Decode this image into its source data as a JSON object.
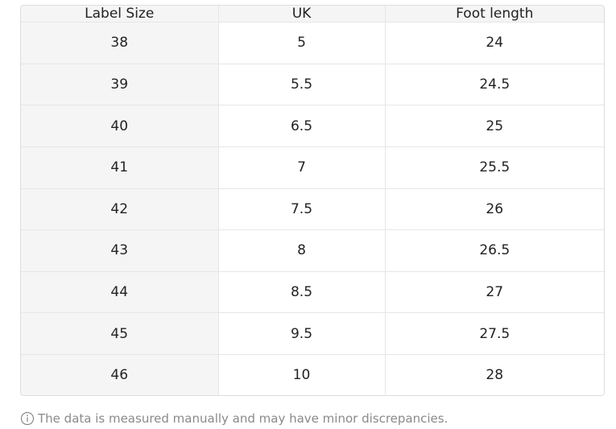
{
  "table": {
    "headers": [
      "Label Size",
      "UK",
      "Foot length"
    ],
    "rows": [
      [
        "38",
        "5",
        "24"
      ],
      [
        "39",
        "5.5",
        "24.5"
      ],
      [
        "40",
        "6.5",
        "25"
      ],
      [
        "41",
        "7",
        "25.5"
      ],
      [
        "42",
        "7.5",
        "26"
      ],
      [
        "43",
        "8",
        "26.5"
      ],
      [
        "44",
        "8.5",
        "27"
      ],
      [
        "45",
        "9.5",
        "27.5"
      ],
      [
        "46",
        "10",
        "28"
      ]
    ]
  },
  "note": {
    "icon": "info-icon",
    "text": "The data is measured manually and may have minor discrepancies."
  },
  "colors": {
    "header_bg": "#f5f5f5",
    "border": "#e6e6e6",
    "note_text": "#8a8a8a"
  }
}
